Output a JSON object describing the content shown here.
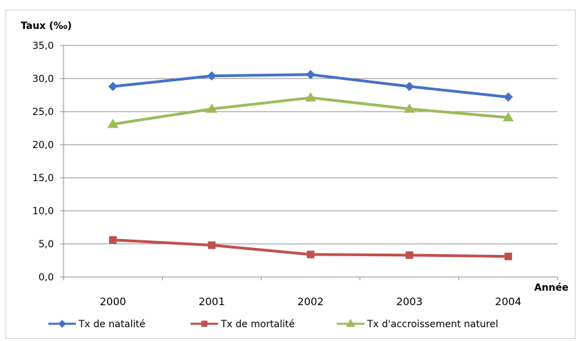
{
  "chart_data": {
    "type": "line",
    "title": "",
    "ylabel": "Taux (‰)",
    "xlabel": "Année",
    "categories": [
      "2000",
      "2001",
      "2002",
      "2003",
      "2004"
    ],
    "ylim": [
      0,
      35
    ],
    "yticks": [
      "0,0",
      "5,0",
      "10,0",
      "15,0",
      "20,0",
      "25,0",
      "30,0",
      "35,0"
    ],
    "grid": true,
    "legend_position": "bottom",
    "series": [
      {
        "name": "Tx de natalité",
        "values": [
          28.8,
          30.4,
          30.6,
          28.8,
          27.2
        ],
        "color": "#4472C4",
        "marker": "diamond"
      },
      {
        "name": "Tx de mortalité",
        "values": [
          5.6,
          4.8,
          3.4,
          3.3,
          3.1
        ],
        "color": "#C0504D",
        "marker": "square"
      },
      {
        "name": "Tx d'accroissement naturel",
        "values": [
          23.1,
          25.4,
          27.1,
          25.4,
          24.1
        ],
        "color": "#9BBB59",
        "marker": "triangle"
      }
    ]
  }
}
